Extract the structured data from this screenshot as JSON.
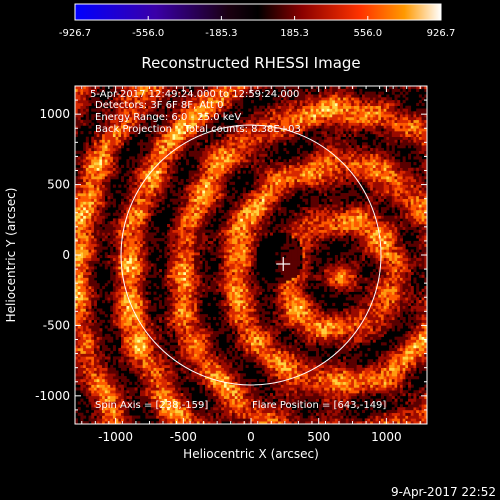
{
  "chart_data": {
    "type": "heatmap",
    "title": "Reconstructed RHESSI Image",
    "xlabel": "Heliocentric X (arcsec)",
    "ylabel": "Heliocentric Y (arcsec)",
    "xlim": [
      -1300,
      1300
    ],
    "ylim": [
      -1200,
      1200
    ],
    "xticks": [
      -1000,
      -500,
      0,
      500,
      1000
    ],
    "yticks": [
      -1000,
      -500,
      0,
      500,
      1000
    ],
    "colorbar": {
      "min": -926.7,
      "max": 926.7,
      "tick_labels": [
        "-926.7",
        "-556.0",
        "-185.3",
        "185.3",
        "556.0",
        "926.7"
      ]
    },
    "annotations": [
      "5-Apr-2017 12:49:24.000 to 12:59:24.000",
      "Detectors: 3F 6F 8F, Att 0",
      "Energy Range: 6.0 - 25.0 keV",
      "Back Projection    Total counts: 8.38E+03"
    ],
    "spin_axis_label": "Spin Axis = [238,-159]",
    "flare_position_label": "Flare Position = [643,-149]",
    "spin_axis": [
      238,
      -159
    ],
    "flare_position": [
      643,
      -149
    ],
    "solar_disk": {
      "center": [
        0,
        0
      ],
      "radius_arcsec": 960
    },
    "footer_timestamp": "9-Apr-2017 22:52",
    "grid": false
  },
  "colors": {
    "background": "#000000",
    "axes": "#ffffff",
    "colormap": [
      "#0000ff",
      "#4b0082",
      "#000000",
      "#8b0000",
      "#ff3300",
      "#ff9900",
      "#ffff66",
      "#ffffff"
    ]
  }
}
